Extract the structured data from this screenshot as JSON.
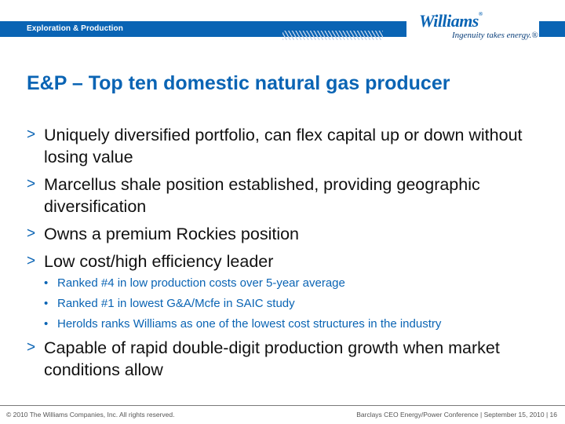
{
  "header": {
    "section_label": "Exploration & Production",
    "logo_name": "Williams",
    "logo_reg": "®",
    "tagline": "Ingenuity takes energy.®"
  },
  "slide": {
    "title": "E&P – Top ten domestic natural gas producer",
    "marker_main": ">",
    "marker_sub": "•",
    "bullets": [
      "Uniquely diversified portfolio, can flex capital up or down without losing value",
      "Marcellus shale position established, providing geographic diversification",
      "Owns a premium Rockies position",
      "Low cost/high efficiency leader"
    ],
    "sub_bullets": [
      "Ranked #4  in low production costs over 5-year average",
      "Ranked #1 in lowest G&A/Mcfe in SAIC study",
      "Herolds ranks Williams as one of the lowest cost structures in the industry"
    ],
    "last_bullet": "Capable of rapid double-digit production growth when market conditions allow"
  },
  "footer": {
    "copyright": "© 2010 The Williams Companies, Inc. All rights reserved.",
    "event": "Barclays CEO Energy/Power Conference  | September 15, 2010  |  16"
  }
}
